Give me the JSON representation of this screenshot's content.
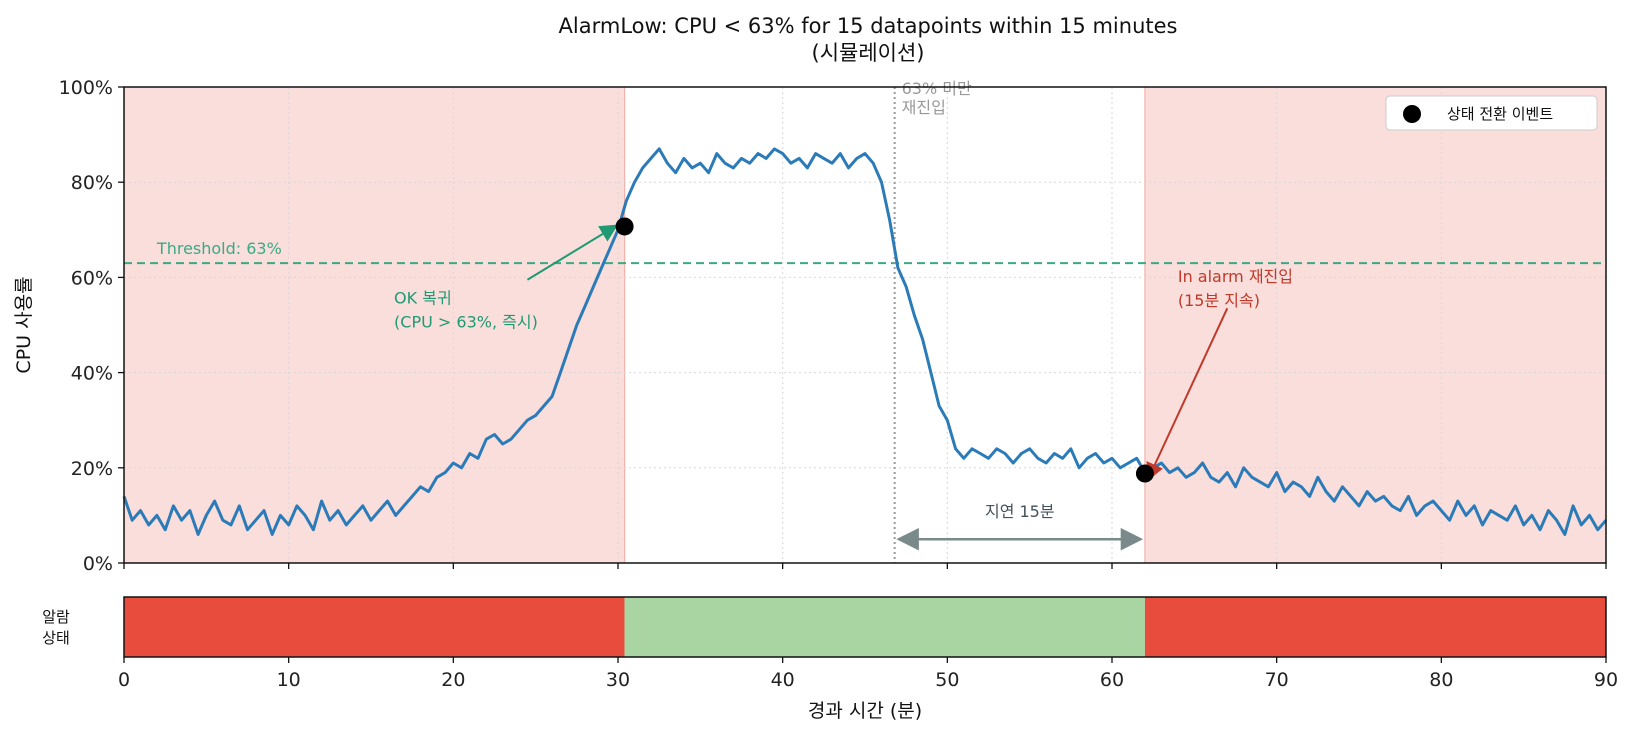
{
  "chart_data": {
    "type": "line",
    "title": "AlarmLow: CPU < 63% for 15 datapoints within 15 minutes",
    "subtitle": "(시뮬레이션)",
    "xlabel": "경과 시간 (분)",
    "ylabel": "CPU 사용률",
    "xlim": [
      0,
      90
    ],
    "ylim": [
      0,
      100
    ],
    "x_ticks": [
      0,
      10,
      20,
      30,
      40,
      50,
      60,
      70,
      80,
      90
    ],
    "y_ticks": [
      0,
      20,
      40,
      60,
      80,
      100
    ],
    "y_tick_labels": [
      "0%",
      "20%",
      "40%",
      "60%",
      "80%",
      "100%"
    ],
    "grid": true,
    "threshold": {
      "value": 63,
      "label": "Threshold: 63%",
      "color": "#3aaa85"
    },
    "alarm_shading": [
      {
        "start": 0,
        "end": 30.4,
        "state": "alarm"
      },
      {
        "start": 62,
        "end": 90,
        "state": "alarm"
      }
    ],
    "reentry_line": {
      "x": 46.8,
      "label_line1": "63% 미만",
      "label_line2": "재진입",
      "color": "#999999"
    },
    "series": [
      {
        "name": "CPU",
        "color": "#2b7bb9",
        "x": [
          0,
          0.5,
          1,
          1.5,
          2,
          2.5,
          3,
          3.5,
          4,
          4.5,
          5,
          5.5,
          6,
          6.5,
          7,
          7.5,
          8,
          8.5,
          9,
          9.5,
          10,
          10.5,
          11,
          11.5,
          12,
          12.5,
          13,
          13.5,
          14,
          14.5,
          15,
          15.5,
          16,
          16.5,
          17,
          17.5,
          18,
          18.5,
          19,
          19.5,
          20,
          20.5,
          21,
          21.5,
          22,
          22.5,
          23,
          23.5,
          24,
          24.5,
          25,
          25.5,
          26,
          26.5,
          27,
          27.5,
          28,
          28.5,
          29,
          29.5,
          30,
          30.5,
          31,
          31.5,
          32,
          32.5,
          33,
          33.5,
          34,
          34.5,
          35,
          35.5,
          36,
          36.5,
          37,
          37.5,
          38,
          38.5,
          39,
          39.5,
          40,
          40.5,
          41,
          41.5,
          42,
          42.5,
          43,
          43.5,
          44,
          44.5,
          45,
          45.5,
          46,
          46.5,
          47,
          47.5,
          48,
          48.5,
          49,
          49.5,
          50,
          50.5,
          51,
          51.5,
          52,
          52.5,
          53,
          53.5,
          54,
          54.5,
          55,
          55.5,
          56,
          56.5,
          57,
          57.5,
          58,
          58.5,
          59,
          59.5,
          60,
          60.5,
          61,
          61.5,
          62,
          62.5,
          63,
          63.5,
          64,
          64.5,
          65,
          65.5,
          66,
          66.5,
          67,
          67.5,
          68,
          68.5,
          69,
          69.5,
          70,
          70.5,
          71,
          71.5,
          72,
          72.5,
          73,
          73.5,
          74,
          74.5,
          75,
          75.5,
          76,
          76.5,
          77,
          77.5,
          78,
          78.5,
          79,
          79.5,
          80,
          80.5,
          81,
          81.5,
          82,
          82.5,
          83,
          83.5,
          84,
          84.5,
          85,
          85.5,
          86,
          86.5,
          87,
          87.5,
          88,
          88.5,
          89,
          89.5,
          90
        ],
        "values": [
          14,
          9,
          11,
          8,
          10,
          7,
          12,
          9,
          11,
          6,
          10,
          13,
          9,
          8,
          12,
          7,
          9,
          11,
          6,
          10,
          8,
          12,
          10,
          7,
          13,
          9,
          11,
          8,
          10,
          12,
          9,
          11,
          13,
          10,
          12,
          14,
          16,
          15,
          18,
          19,
          21,
          20,
          23,
          22,
          26,
          27,
          25,
          26,
          28,
          30,
          31,
          33,
          35,
          40,
          45,
          50,
          54,
          58,
          62,
          66,
          70,
          76,
          80,
          83,
          85,
          87,
          84,
          82,
          85,
          83,
          84,
          82,
          86,
          84,
          83,
          85,
          84,
          86,
          85,
          87,
          86,
          84,
          85,
          83,
          86,
          85,
          84,
          86,
          83,
          85,
          86,
          84,
          80,
          72,
          62,
          58,
          52,
          47,
          40,
          33,
          30,
          24,
          22,
          24,
          23,
          22,
          24,
          23,
          21,
          23,
          24,
          22,
          21,
          23,
          22,
          24,
          20,
          22,
          23,
          21,
          22,
          20,
          21,
          22,
          19,
          20,
          21,
          19,
          20,
          18,
          19,
          21,
          18,
          17,
          19,
          16,
          20,
          18,
          17,
          16,
          19,
          15,
          17,
          16,
          14,
          18,
          15,
          13,
          16,
          14,
          12,
          15,
          13,
          14,
          12,
          11,
          14,
          10,
          12,
          13,
          11,
          9,
          13,
          10,
          12,
          8,
          11,
          10,
          9,
          12,
          8,
          10,
          7,
          11,
          9,
          6,
          12,
          8,
          10,
          7,
          9
        ]
      }
    ],
    "events": [
      {
        "x": 30.4,
        "y": 70.7
      },
      {
        "x": 62,
        "y": 18.8
      }
    ],
    "legend": {
      "label": "상태 전환 이벤트",
      "position": "top-right"
    },
    "annotations": [
      {
        "text_line1": "OK 복귀",
        "text_line2": "(CPU > 63%, 즉시)",
        "color": "#1f9a72",
        "target_x": 30.4,
        "target_y": 70.7
      },
      {
        "text_line1": "In alarm 재진입",
        "text_line2": "(15분 지속)",
        "color": "#c0392b",
        "target_x": 62,
        "target_y": 18.8
      },
      {
        "text": "지연 15분",
        "color": "#7a8a8a",
        "x_start": 46.8,
        "x_end": 62,
        "y": 5
      }
    ],
    "state_strip": {
      "label_line1": "알람",
      "label_line2": "상태",
      "segments": [
        {
          "start": 0,
          "end": 30.4,
          "state": "ALARM",
          "color": "#e74c3c"
        },
        {
          "start": 30.4,
          "end": 62,
          "state": "OK",
          "color": "#a8d5a2"
        },
        {
          "start": 62,
          "end": 90,
          "state": "ALARM",
          "color": "#e74c3c"
        }
      ]
    }
  }
}
